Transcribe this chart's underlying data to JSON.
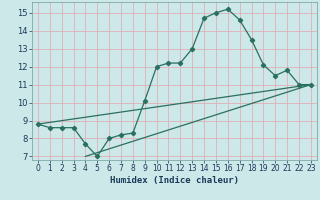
{
  "xlabel": "Humidex (Indice chaleur)",
  "bg_color": "#cce8e8",
  "line_color": "#2a7060",
  "grid_color": "#c0d8d8",
  "xlim": [
    -0.5,
    23.5
  ],
  "ylim": [
    6.8,
    15.6
  ],
  "xticks": [
    0,
    1,
    2,
    3,
    4,
    5,
    6,
    7,
    8,
    9,
    10,
    11,
    12,
    13,
    14,
    15,
    16,
    17,
    18,
    19,
    20,
    21,
    22,
    23
  ],
  "yticks": [
    7,
    8,
    9,
    10,
    11,
    12,
    13,
    14,
    15
  ],
  "line1_x": [
    0,
    1,
    2,
    3,
    4,
    5,
    6,
    7,
    8,
    9,
    10,
    11,
    12,
    13,
    14,
    15,
    16,
    17,
    18,
    19,
    20,
    21,
    22,
    23
  ],
  "line1_y": [
    8.8,
    8.6,
    8.6,
    8.6,
    7.7,
    7.0,
    8.0,
    8.2,
    8.3,
    10.1,
    12.0,
    12.2,
    12.2,
    13.0,
    14.7,
    15.0,
    15.2,
    14.6,
    13.5,
    12.1,
    11.5,
    11.8,
    11.0,
    11.0
  ],
  "line2_x": [
    0,
    23
  ],
  "line2_y": [
    8.8,
    11.0
  ],
  "line3_x": [
    4,
    23
  ],
  "line3_y": [
    7.0,
    11.0
  ]
}
